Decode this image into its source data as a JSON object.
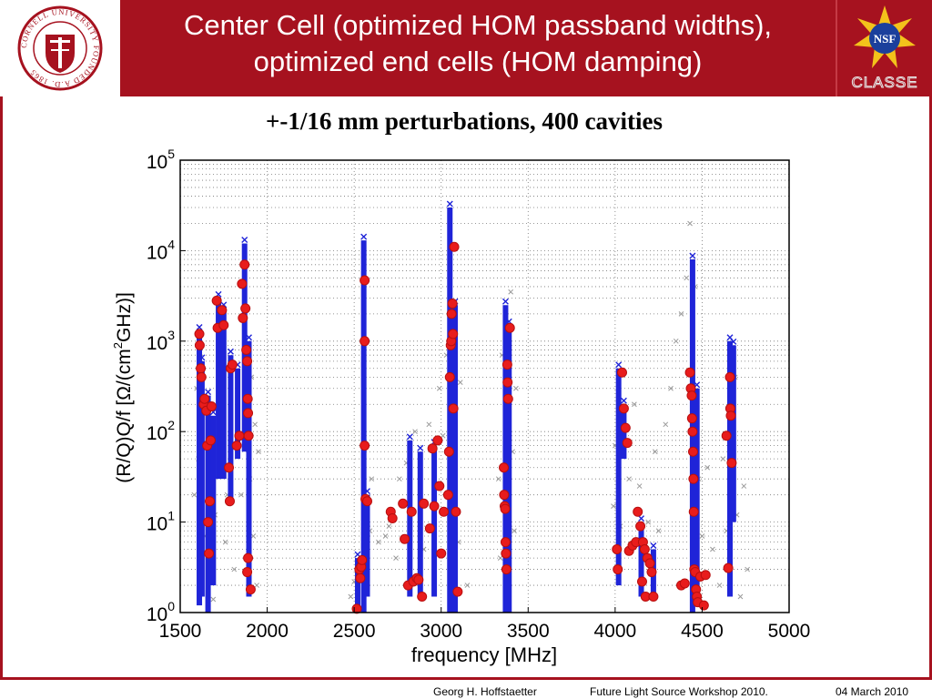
{
  "header": {
    "title_line1": "Center Cell (optimized HOM passband widths),",
    "title_line2": "optimized end cells (HOM damping)",
    "left_logo_icon": "cornell-university-seal-icon",
    "left_logo_text": "CORNELL UNIVERSITY FOUNDED A.D. 1865",
    "right_logo_icon": "nsf-logo-icon",
    "right_logo_text": "NSF",
    "right_logo_caption": "CLASSE"
  },
  "colors": {
    "header_bg": "#a6121f",
    "series_simulated": "#1f24d8",
    "series_measured": "#e81c1c",
    "background_points": "#9a9a9a"
  },
  "chart_data": {
    "type": "scatter",
    "title": "+-1/16 mm perturbations, 400 cavities",
    "xlabel": "frequency [MHz]",
    "ylabel_main": "(R/Q)Q/f  [Ω/(cm",
    "ylabel_sup": "2",
    "ylabel_end": "GHz)]",
    "x_scale": "linear",
    "y_scale": "log",
    "xlim": [
      1500,
      5000
    ],
    "ylim": [
      1,
      100000
    ],
    "x_ticks": [
      "1500",
      "2000",
      "2500",
      "3000",
      "3500",
      "4000",
      "4500",
      "5000"
    ],
    "y_ticks": [
      {
        "base": "10",
        "exp": "0"
      },
      {
        "base": "10",
        "exp": "1"
      },
      {
        "base": "10",
        "exp": "2"
      },
      {
        "base": "10",
        "exp": "3"
      },
      {
        "base": "10",
        "exp": "4"
      },
      {
        "base": "10",
        "exp": "5"
      }
    ],
    "grid": true,
    "passbands": [
      {
        "x": 1610,
        "ymin": 1.2,
        "ymax": 1300
      },
      {
        "x": 1625,
        "ymin": 1.5,
        "ymax": 600
      },
      {
        "x": 1660,
        "ymin": 1.0,
        "ymax": 250
      },
      {
        "x": 1690,
        "ymin": 2,
        "ymax": 150
      },
      {
        "x": 1720,
        "ymin": 30,
        "ymax": 3000
      },
      {
        "x": 1750,
        "ymin": 30,
        "ymax": 2300
      },
      {
        "x": 1790,
        "ymin": 17,
        "ymax": 700
      },
      {
        "x": 1830,
        "ymin": 50,
        "ymax": 500
      },
      {
        "x": 1870,
        "ymin": 60,
        "ymax": 12000
      },
      {
        "x": 1895,
        "ymin": 1.5,
        "ymax": 1000
      },
      {
        "x": 2520,
        "ymin": 1.0,
        "ymax": 4
      },
      {
        "x": 2555,
        "ymin": 1.0,
        "ymax": 13000
      },
      {
        "x": 2575,
        "ymin": 1.5,
        "ymax": 20
      },
      {
        "x": 2820,
        "ymin": 1.5,
        "ymax": 80
      },
      {
        "x": 2880,
        "ymin": 1.5,
        "ymax": 60
      },
      {
        "x": 2960,
        "ymin": 1.5,
        "ymax": 70
      },
      {
        "x": 3050,
        "ymin": 1.0,
        "ymax": 30000
      },
      {
        "x": 3080,
        "ymin": 1.0,
        "ymax": 2500
      },
      {
        "x": 3370,
        "ymin": 1.0,
        "ymax": 2500
      },
      {
        "x": 3390,
        "ymin": 1.0,
        "ymax": 1500
      },
      {
        "x": 4020,
        "ymin": 2,
        "ymax": 500
      },
      {
        "x": 4050,
        "ymin": 50,
        "ymax": 200
      },
      {
        "x": 4150,
        "ymin": 1.5,
        "ymax": 10
      },
      {
        "x": 4220,
        "ymin": 1.5,
        "ymax": 5
      },
      {
        "x": 4445,
        "ymin": 1.0,
        "ymax": 8000
      },
      {
        "x": 4470,
        "ymin": 1.2,
        "ymax": 300
      },
      {
        "x": 4660,
        "ymin": 1.5,
        "ymax": 1000
      },
      {
        "x": 4680,
        "ymin": 10,
        "ymax": 900
      }
    ],
    "measured_points": [
      {
        "x": 1610,
        "y": 1200
      },
      {
        "x": 1612,
        "y": 900
      },
      {
        "x": 1618,
        "y": 500
      },
      {
        "x": 1622,
        "y": 400
      },
      {
        "x": 1635,
        "y": 200
      },
      {
        "x": 1640,
        "y": 230
      },
      {
        "x": 1650,
        "y": 170
      },
      {
        "x": 1655,
        "y": 70
      },
      {
        "x": 1660,
        "y": 10
      },
      {
        "x": 1665,
        "y": 4.5
      },
      {
        "x": 1670,
        "y": 17
      },
      {
        "x": 1675,
        "y": 80
      },
      {
        "x": 1680,
        "y": 190
      },
      {
        "x": 1710,
        "y": 2800
      },
      {
        "x": 1715,
        "y": 1400
      },
      {
        "x": 1740,
        "y": 2200
      },
      {
        "x": 1750,
        "y": 1500
      },
      {
        "x": 1780,
        "y": 40
      },
      {
        "x": 1785,
        "y": 17
      },
      {
        "x": 1790,
        "y": 500
      },
      {
        "x": 1800,
        "y": 550
      },
      {
        "x": 1825,
        "y": 70
      },
      {
        "x": 1840,
        "y": 90
      },
      {
        "x": 1855,
        "y": 4300
      },
      {
        "x": 1860,
        "y": 1800
      },
      {
        "x": 1870,
        "y": 7000
      },
      {
        "x": 1875,
        "y": 2300
      },
      {
        "x": 1880,
        "y": 800
      },
      {
        "x": 1885,
        "y": 600
      },
      {
        "x": 1888,
        "y": 230
      },
      {
        "x": 1890,
        "y": 160
      },
      {
        "x": 1893,
        "y": 90
      },
      {
        "x": 1890,
        "y": 4
      },
      {
        "x": 1885,
        "y": 2.8
      },
      {
        "x": 1905,
        "y": 1.8
      },
      {
        "x": 2515,
        "y": 1.1
      },
      {
        "x": 2530,
        "y": 3
      },
      {
        "x": 2535,
        "y": 2.4
      },
      {
        "x": 2540,
        "y": 3.2
      },
      {
        "x": 2545,
        "y": 3.8
      },
      {
        "x": 2560,
        "y": 4700
      },
      {
        "x": 2560,
        "y": 1000
      },
      {
        "x": 2560,
        "y": 70
      },
      {
        "x": 2565,
        "y": 18
      },
      {
        "x": 2575,
        "y": 17
      },
      {
        "x": 2710,
        "y": 13
      },
      {
        "x": 2720,
        "y": 11
      },
      {
        "x": 2780,
        "y": 16
      },
      {
        "x": 2790,
        "y": 6.5
      },
      {
        "x": 2810,
        "y": 2
      },
      {
        "x": 2830,
        "y": 13
      },
      {
        "x": 2840,
        "y": 2.2
      },
      {
        "x": 2860,
        "y": 2.4
      },
      {
        "x": 2870,
        "y": 2.3
      },
      {
        "x": 2890,
        "y": 1.5
      },
      {
        "x": 2900,
        "y": 16
      },
      {
        "x": 2935,
        "y": 8.5
      },
      {
        "x": 2950,
        "y": 65
      },
      {
        "x": 2960,
        "y": 15
      },
      {
        "x": 2980,
        "y": 80
      },
      {
        "x": 2990,
        "y": 25
      },
      {
        "x": 3000,
        "y": 4.5
      },
      {
        "x": 3015,
        "y": 13
      },
      {
        "x": 3040,
        "y": 20
      },
      {
        "x": 3045,
        "y": 60
      },
      {
        "x": 3050,
        "y": 400
      },
      {
        "x": 3055,
        "y": 900
      },
      {
        "x": 3058,
        "y": 1000
      },
      {
        "x": 3060,
        "y": 2000
      },
      {
        "x": 3065,
        "y": 2600
      },
      {
        "x": 3068,
        "y": 1200
      },
      {
        "x": 3070,
        "y": 180
      },
      {
        "x": 3075,
        "y": 11000
      },
      {
        "x": 3085,
        "y": 13
      },
      {
        "x": 3095,
        "y": 1.7
      },
      {
        "x": 3360,
        "y": 40
      },
      {
        "x": 3362,
        "y": 20
      },
      {
        "x": 3365,
        "y": 15
      },
      {
        "x": 3368,
        "y": 14
      },
      {
        "x": 3370,
        "y": 6
      },
      {
        "x": 3372,
        "y": 4.5
      },
      {
        "x": 3375,
        "y": 3
      },
      {
        "x": 3380,
        "y": 550
      },
      {
        "x": 3382,
        "y": 350
      },
      {
        "x": 3385,
        "y": 230
      },
      {
        "x": 3395,
        "y": 1400
      },
      {
        "x": 4010,
        "y": 5
      },
      {
        "x": 4015,
        "y": 3
      },
      {
        "x": 4040,
        "y": 450
      },
      {
        "x": 4050,
        "y": 180
      },
      {
        "x": 4060,
        "y": 110
      },
      {
        "x": 4070,
        "y": 75
      },
      {
        "x": 4080,
        "y": 4.8
      },
      {
        "x": 4100,
        "y": 5.5
      },
      {
        "x": 4120,
        "y": 6
      },
      {
        "x": 4130,
        "y": 13
      },
      {
        "x": 4145,
        "y": 9
      },
      {
        "x": 4155,
        "y": 2.2
      },
      {
        "x": 4160,
        "y": 6
      },
      {
        "x": 4170,
        "y": 5
      },
      {
        "x": 4175,
        "y": 1.5
      },
      {
        "x": 4185,
        "y": 4
      },
      {
        "x": 4200,
        "y": 3.5
      },
      {
        "x": 4210,
        "y": 2.8
      },
      {
        "x": 4220,
        "y": 1.5
      },
      {
        "x": 4380,
        "y": 2
      },
      {
        "x": 4400,
        "y": 2.1
      },
      {
        "x": 4430,
        "y": 450
      },
      {
        "x": 4435,
        "y": 300
      },
      {
        "x": 4440,
        "y": 250
      },
      {
        "x": 4442,
        "y": 140
      },
      {
        "x": 4445,
        "y": 100
      },
      {
        "x": 4448,
        "y": 60
      },
      {
        "x": 4450,
        "y": 30
      },
      {
        "x": 4452,
        "y": 13
      },
      {
        "x": 4455,
        "y": 3
      },
      {
        "x": 4460,
        "y": 2.8
      },
      {
        "x": 4465,
        "y": 1.8
      },
      {
        "x": 4470,
        "y": 1.5
      },
      {
        "x": 4475,
        "y": 1.3
      },
      {
        "x": 4490,
        "y": 2.5
      },
      {
        "x": 4510,
        "y": 1.2
      },
      {
        "x": 4520,
        "y": 2.6
      },
      {
        "x": 4640,
        "y": 90
      },
      {
        "x": 4650,
        "y": 3.1
      },
      {
        "x": 4660,
        "y": 400
      },
      {
        "x": 4662,
        "y": 180
      },
      {
        "x": 4665,
        "y": 150
      },
      {
        "x": 4670,
        "y": 45
      }
    ],
    "background_points": [
      {
        "x": 1580,
        "y": 20
      },
      {
        "x": 1595,
        "y": 300
      },
      {
        "x": 1605,
        "y": 50
      },
      {
        "x": 1640,
        "y": 7
      },
      {
        "x": 1690,
        "y": 1.4
      },
      {
        "x": 1700,
        "y": 12
      },
      {
        "x": 1760,
        "y": 6
      },
      {
        "x": 1770,
        "y": 20
      },
      {
        "x": 1810,
        "y": 3
      },
      {
        "x": 1850,
        "y": 20
      },
      {
        "x": 1900,
        "y": 30
      },
      {
        "x": 1910,
        "y": 400
      },
      {
        "x": 1920,
        "y": 7
      },
      {
        "x": 1930,
        "y": 120
      },
      {
        "x": 1940,
        "y": 2
      },
      {
        "x": 1950,
        "y": 60
      },
      {
        "x": 2480,
        "y": 1.5
      },
      {
        "x": 2500,
        "y": 2.2
      },
      {
        "x": 2590,
        "y": 8
      },
      {
        "x": 2600,
        "y": 30
      },
      {
        "x": 2640,
        "y": 6
      },
      {
        "x": 2680,
        "y": 7
      },
      {
        "x": 2700,
        "y": 9
      },
      {
        "x": 2740,
        "y": 4
      },
      {
        "x": 2760,
        "y": 30
      },
      {
        "x": 2800,
        "y": 45
      },
      {
        "x": 2850,
        "y": 100
      },
      {
        "x": 2900,
        "y": 5
      },
      {
        "x": 2930,
        "y": 120
      },
      {
        "x": 2990,
        "y": 300
      },
      {
        "x": 3010,
        "y": 90
      },
      {
        "x": 3030,
        "y": 700
      },
      {
        "x": 3100,
        "y": 6
      },
      {
        "x": 3110,
        "y": 350
      },
      {
        "x": 3150,
        "y": 2
      },
      {
        "x": 3330,
        "y": 30
      },
      {
        "x": 3340,
        "y": 4
      },
      {
        "x": 3350,
        "y": 700
      },
      {
        "x": 3400,
        "y": 3500
      },
      {
        "x": 3410,
        "y": 60
      },
      {
        "x": 3420,
        "y": 8
      },
      {
        "x": 3430,
        "y": 300
      },
      {
        "x": 3990,
        "y": 15
      },
      {
        "x": 4000,
        "y": 70
      },
      {
        "x": 4030,
        "y": 9
      },
      {
        "x": 4080,
        "y": 30
      },
      {
        "x": 4110,
        "y": 200
      },
      {
        "x": 4140,
        "y": 25
      },
      {
        "x": 4190,
        "y": 10
      },
      {
        "x": 4230,
        "y": 60
      },
      {
        "x": 4250,
        "y": 8
      },
      {
        "x": 4290,
        "y": 120
      },
      {
        "x": 4320,
        "y": 300
      },
      {
        "x": 4350,
        "y": 1000
      },
      {
        "x": 4380,
        "y": 2000
      },
      {
        "x": 4410,
        "y": 5000
      },
      {
        "x": 4430,
        "y": 20000
      },
      {
        "x": 4460,
        "y": 4000
      },
      {
        "x": 4480,
        "y": 30
      },
      {
        "x": 4500,
        "y": 7
      },
      {
        "x": 4530,
        "y": 40
      },
      {
        "x": 4560,
        "y": 5
      },
      {
        "x": 4600,
        "y": 2
      },
      {
        "x": 4620,
        "y": 50
      },
      {
        "x": 4640,
        "y": 8
      },
      {
        "x": 4690,
        "y": 400
      },
      {
        "x": 4700,
        "y": 12
      },
      {
        "x": 4720,
        "y": 1.5
      },
      {
        "x": 4740,
        "y": 25
      },
      {
        "x": 4760,
        "y": 3
      }
    ]
  },
  "footer": {
    "author": "Georg H. Hoffstaetter",
    "event": "Future Light Source Workshop 2010.",
    "date": "04 March 2010"
  }
}
